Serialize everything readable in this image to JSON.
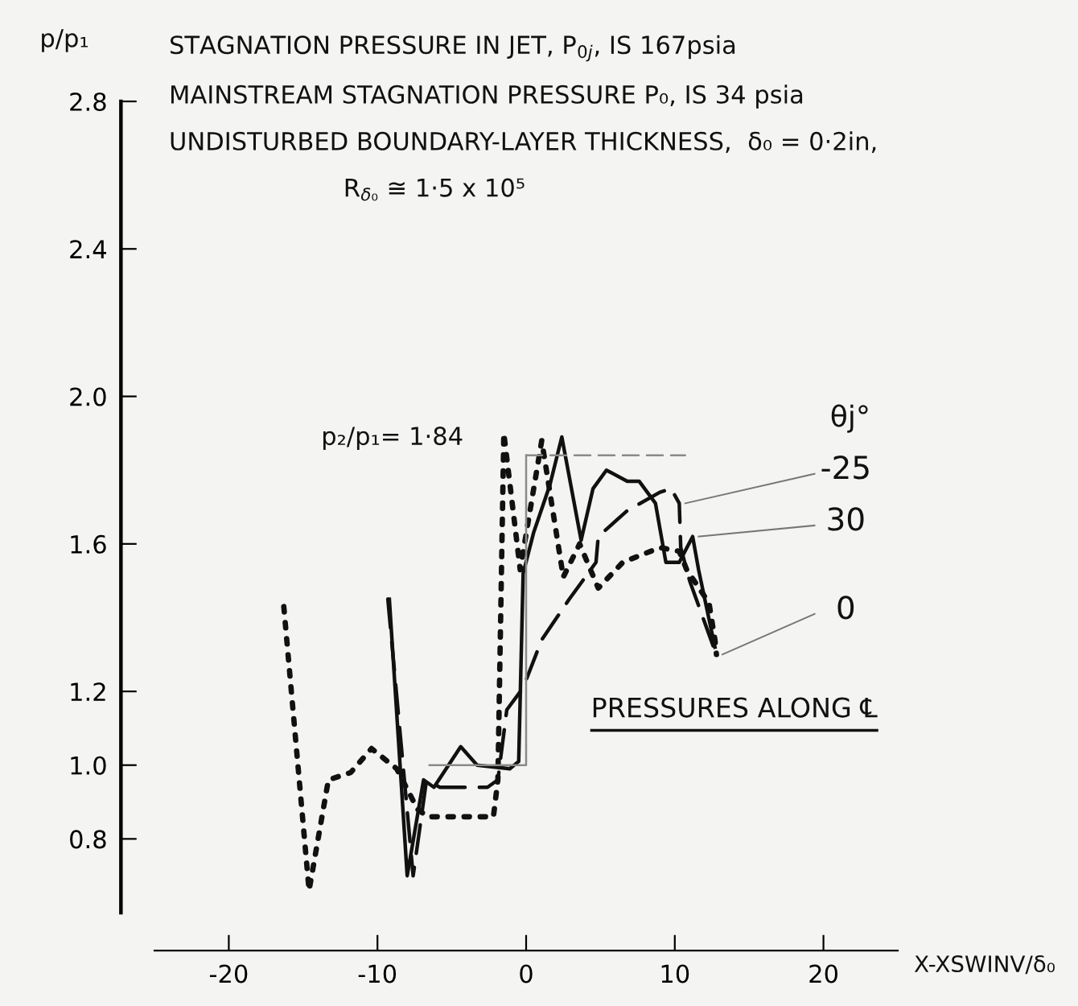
{
  "chart_data": {
    "type": "line",
    "title": "STAGNATION PRESSURE IN JET, P$_{0j}$, IS 167psia",
    "subtitle": "MAINSTREAM STAGNATION PRESSURE P₀, IS 34 psia\nUNDISTURBED BOUNDARY-LAYER THICKNESS,  δ₀ = 0·2in,\nR$_{δ₀}$ ≅ 1·5 x 10⁵",
    "xlabel": "X-XSWINV/δ₀",
    "ylabel": "p/p₁",
    "legend_title": "θj°",
    "annotations": [
      "p₂/p₁= 1·84",
      "PRESSURES ALONG ℄"
    ],
    "xlim": [
      -25,
      25
    ],
    "ylim": [
      0.6,
      2.8
    ],
    "xticks": [
      -20,
      -10,
      0,
      10,
      20
    ],
    "yticks": [
      {
        "value": 0.8,
        "label": "0.8"
      },
      {
        "value": 1.0,
        "label": "1.0"
      },
      {
        "value": 1.2,
        "label": "1.2"
      },
      {
        "value": 1.6,
        "label": "1.6"
      },
      {
        "value": 2.0,
        "label": "2.0"
      },
      {
        "value": 2.4,
        "label": "2.4"
      },
      {
        "value": 2.8,
        "label": "2.8"
      }
    ],
    "grid": false,
    "legend": false,
    "marker": "none",
    "series": [
      {
        "name": "-25",
        "color": "#111111",
        "line_style": "dashed",
        "x": [
          -9.3,
          -7.6,
          -6.7,
          -5.8,
          -2.6,
          -1.9,
          -1.3,
          -0.2,
          1.05,
          2.9,
          4.7,
          4.85,
          6.8,
          9.0,
          9.75,
          10.3,
          10.4,
          11.0,
          12.7
        ],
        "values": [
          1.45,
          0.7,
          0.96,
          0.94,
          0.94,
          0.96,
          1.15,
          1.21,
          1.34,
          1.45,
          1.55,
          1.62,
          1.69,
          1.74,
          1.75,
          1.71,
          1.59,
          1.5,
          1.31
        ]
      },
      {
        "name": "30",
        "color": "#111111",
        "line_style": "solid",
        "x": [
          -9.2,
          -8.0,
          -6.9,
          -6.2,
          -4.4,
          -3.3,
          -1.1,
          -0.5,
          -0.2,
          0.5,
          1.6,
          2.4,
          3.7,
          4.5,
          5.4,
          6.8,
          7.6,
          8.7,
          9.4,
          10.3,
          11.2,
          11.6,
          12.7
        ],
        "values": [
          1.45,
          0.7,
          0.96,
          0.94,
          1.05,
          1.0,
          0.99,
          1.01,
          1.52,
          1.63,
          1.76,
          1.89,
          1.61,
          1.75,
          1.8,
          1.77,
          1.77,
          1.71,
          1.55,
          1.55,
          1.62,
          1.53,
          1.32
        ]
      },
      {
        "name": "0",
        "color": "#111111",
        "line_style": "dotted",
        "x": [
          -16.3,
          -14.6,
          -13.3,
          -11.8,
          -10.4,
          -8.7,
          -7.3,
          -6.6,
          -2.2,
          -1.9,
          -1.5,
          -0.4,
          1.05,
          2.5,
          3.6,
          4.85,
          6.5,
          9.0,
          10.3,
          10.8,
          12.3,
          12.7,
          12.8
        ],
        "values": [
          1.43,
          0.66,
          0.96,
          0.98,
          1.045,
          0.99,
          0.88,
          0.86,
          0.86,
          0.96,
          1.9,
          1.53,
          1.88,
          1.51,
          1.6,
          1.48,
          1.55,
          1.59,
          1.58,
          1.53,
          1.44,
          1.34,
          1.3
        ]
      },
      {
        "color": "#8a8a8a",
        "line_style": "solid",
        "x": [
          -6.5,
          0,
          0
        ],
        "values": [
          1.0,
          1.0,
          1.84
        ]
      },
      {
        "color": "#8a8a8a",
        "line_style": "dashed",
        "x": [
          0,
          10.7
        ],
        "values": [
          1.84,
          1.84
        ]
      }
    ]
  }
}
